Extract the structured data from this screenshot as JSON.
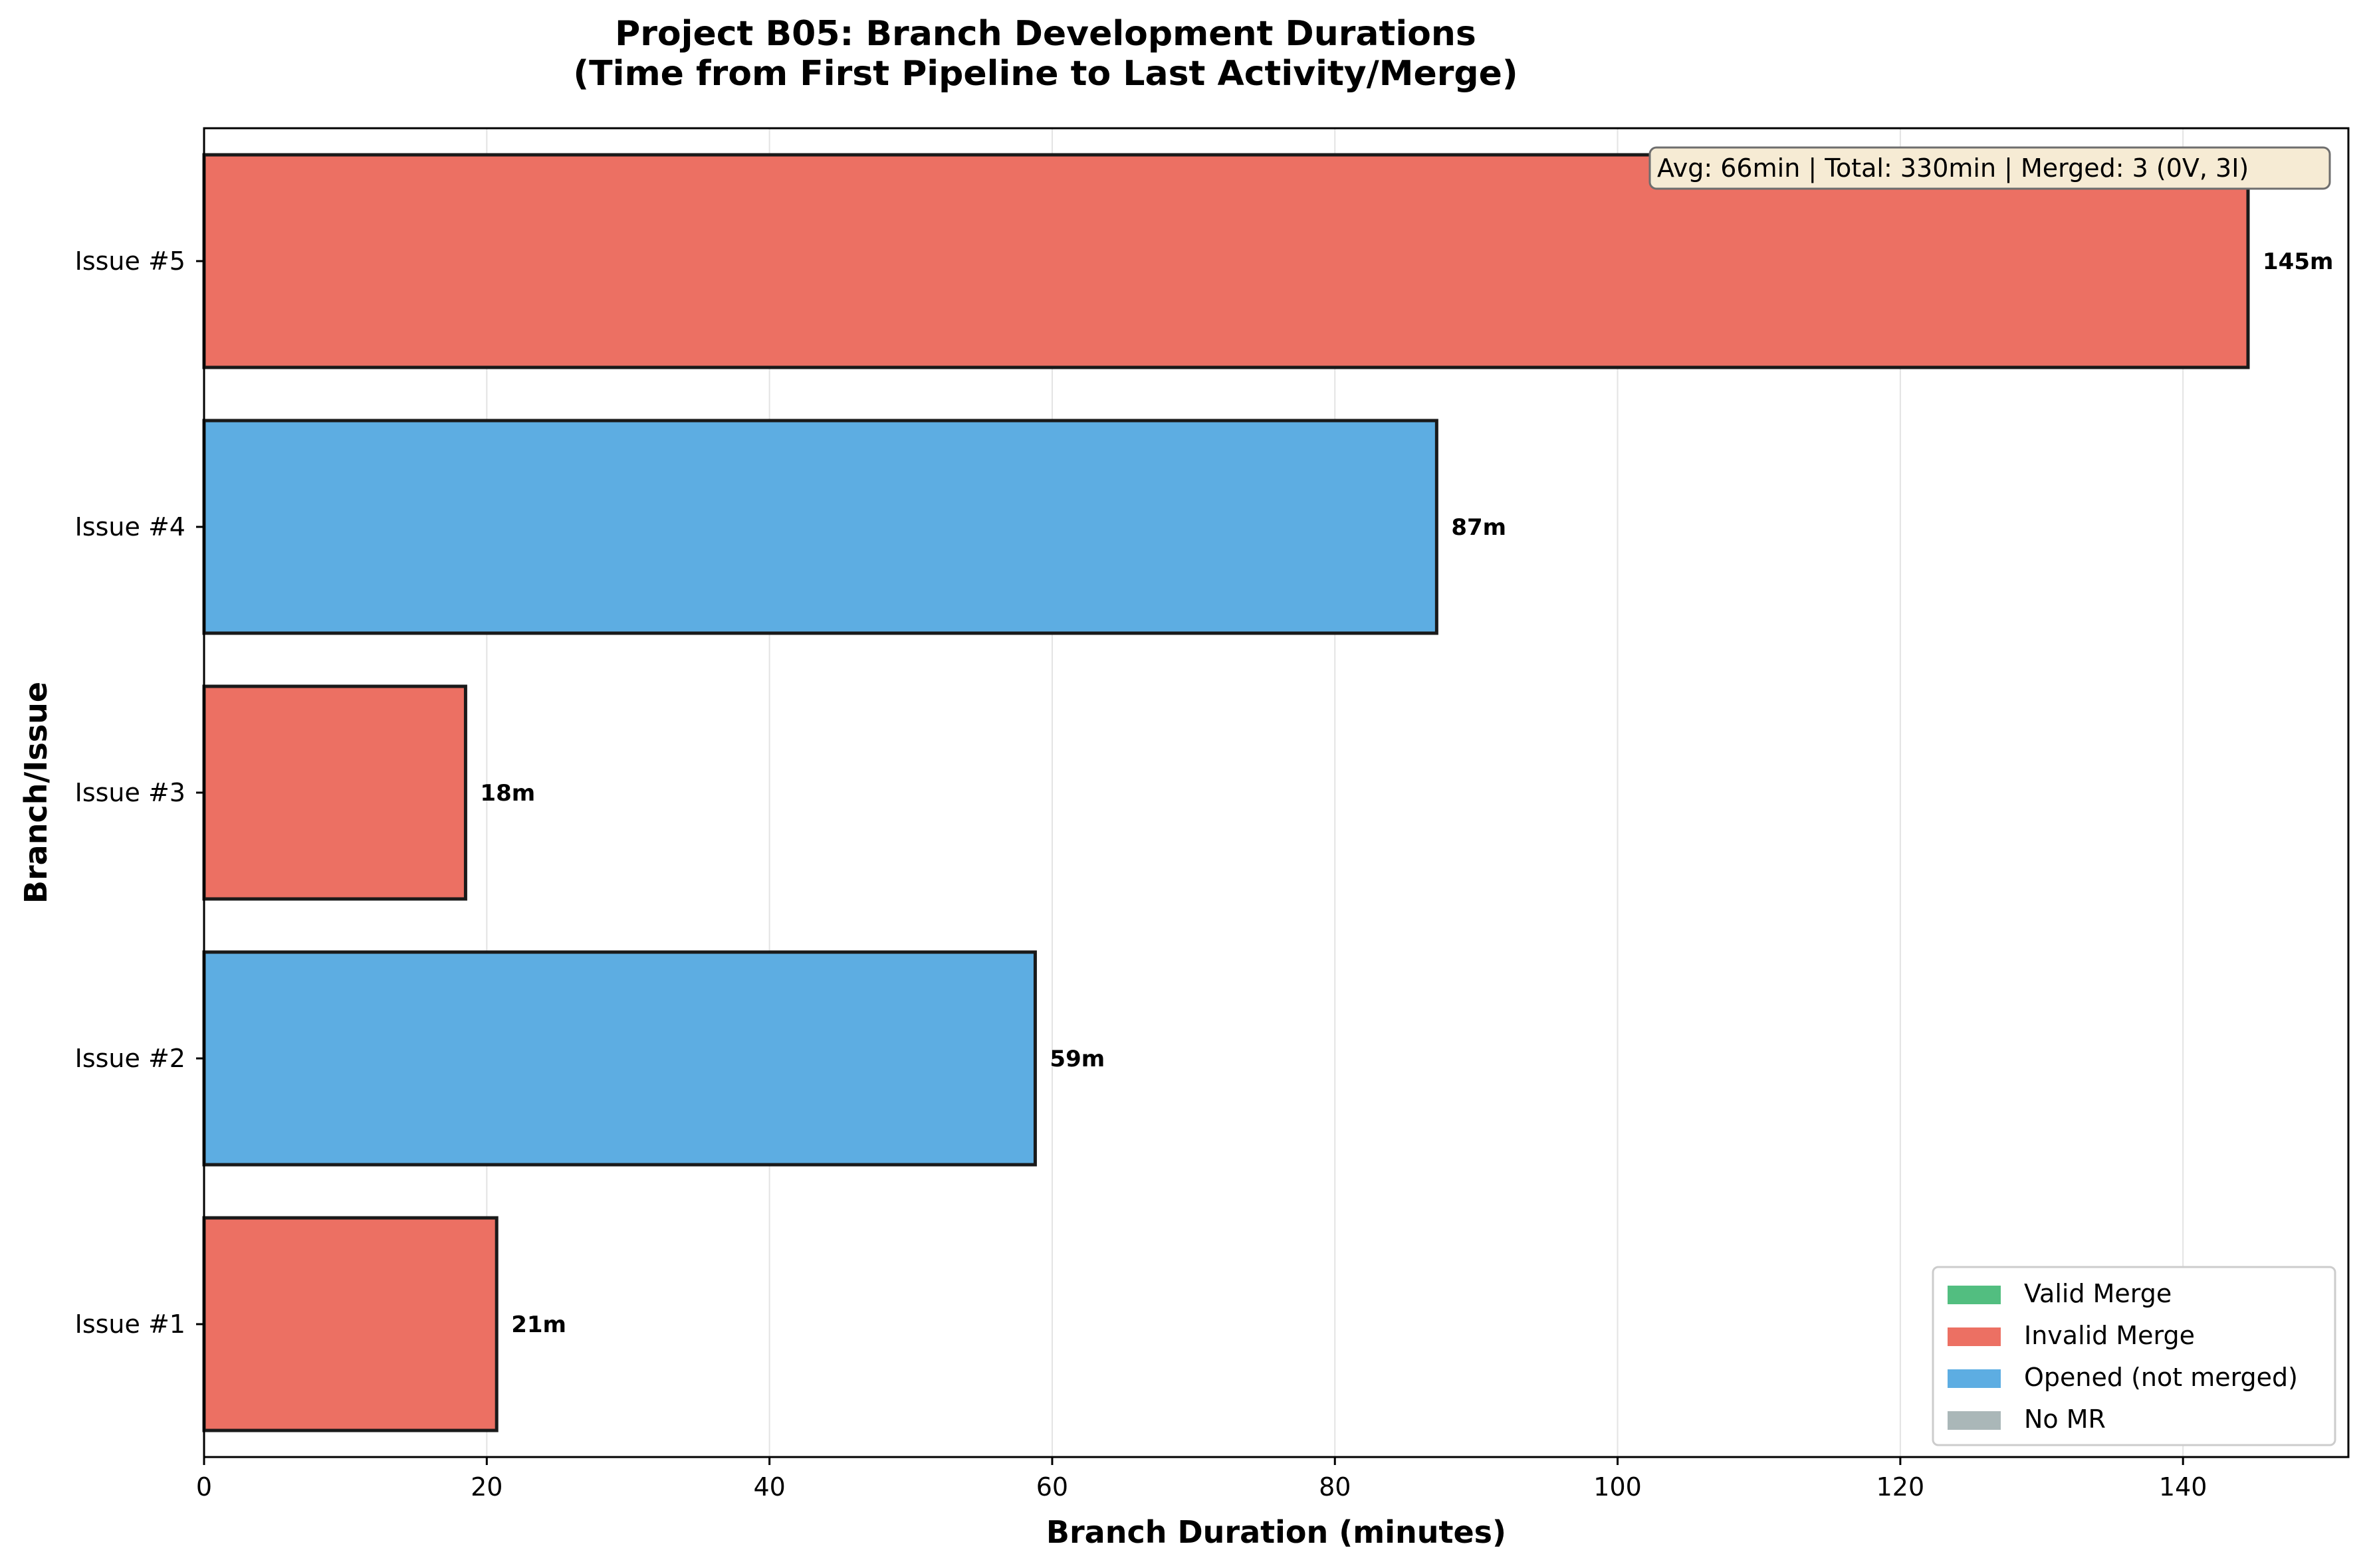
{
  "chart_data": {
    "type": "bar",
    "orientation": "horizontal",
    "title": "Project B05: Branch Development Durations",
    "subtitle": "(Time from First Pipeline to Last Activity/Merge)",
    "xlabel": "Branch Duration (minutes)",
    "ylabel": "Branch/Issue",
    "xlim": [
      0,
      151.7
    ],
    "x_ticks": [
      0,
      20,
      40,
      60,
      80,
      100,
      120,
      140
    ],
    "grid": "vertical",
    "categories": [
      "Issue #1",
      "Issue #2",
      "Issue #3",
      "Issue #4",
      "Issue #5"
    ],
    "values": [
      20.7,
      58.8,
      18.5,
      87.2,
      144.6
    ],
    "value_labels": [
      "21m",
      "59m",
      "18m",
      "87m",
      "145m"
    ],
    "statuses": [
      "Invalid Merge",
      "Opened (not merged)",
      "Invalid Merge",
      "Opened (not merged)",
      "Invalid Merge"
    ],
    "status_colors": {
      "Valid Merge": "#52be80",
      "Invalid Merge": "#ec7063",
      "Opened (not merged)": "#5dade2",
      "No MR": "#aab7b8"
    },
    "legend": {
      "position": "lower-right",
      "entries": [
        "Valid Merge",
        "Invalid Merge",
        "Opened (not merged)",
        "No MR"
      ]
    },
    "annotation": "Avg: 66min | Total: 330min | Merged: 3 (0V, 3I)"
  }
}
